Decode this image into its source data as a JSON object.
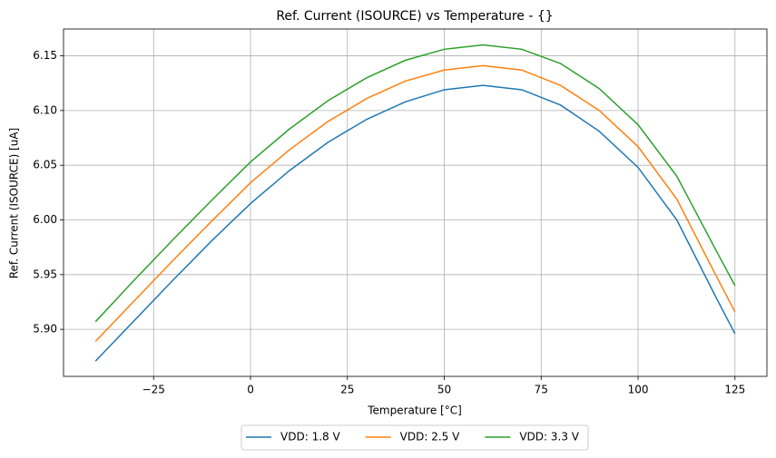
{
  "chart_data": {
    "type": "line",
    "title": "Ref. Current (ISOURCE) vs Temperature - {}",
    "x_label": "Temperature [°C]",
    "y_label": "Ref. Current (ISOURCE) [uA]",
    "x": [
      -40,
      -30,
      -20,
      -10,
      0,
      10,
      20,
      30,
      40,
      50,
      60,
      70,
      80,
      90,
      100,
      110,
      120,
      125
    ],
    "series": [
      {
        "name": "VDD: 1.8 V",
        "color": "#1f77b4",
        "values": [
          5.871,
          5.908,
          5.945,
          5.981,
          6.015,
          6.045,
          6.071,
          6.092,
          6.108,
          6.119,
          6.123,
          6.119,
          6.105,
          6.081,
          6.048,
          6.0,
          5.93,
          5.896
        ]
      },
      {
        "name": "VDD: 2.5 V",
        "color": "#ff7f0e",
        "values": [
          5.889,
          5.926,
          5.963,
          5.999,
          6.034,
          6.064,
          6.09,
          6.111,
          6.127,
          6.137,
          6.141,
          6.137,
          6.123,
          6.1,
          6.067,
          6.019,
          5.95,
          5.916
        ]
      },
      {
        "name": "VDD: 3.3 V",
        "color": "#2ca02c",
        "values": [
          5.907,
          5.945,
          5.982,
          6.018,
          6.053,
          6.083,
          6.109,
          6.13,
          6.146,
          6.156,
          6.16,
          6.156,
          6.143,
          6.12,
          6.087,
          6.04,
          5.973,
          5.94
        ]
      }
    ],
    "xlim": [
      -48.25,
      133.25
    ],
    "ylim": [
      5.857,
      6.1745
    ],
    "xticks": [
      {
        "value": -25,
        "label": "−25"
      },
      0,
      25,
      50,
      75,
      100,
      125
    ],
    "yticks": [
      {
        "value": 5.9,
        "label": "5.90"
      },
      5.95,
      {
        "value": 6.0,
        "label": "6.00"
      },
      6.05,
      {
        "value": 6.1,
        "label": "6.10"
      },
      6.15
    ],
    "grid": true,
    "legend": "bottom"
  }
}
